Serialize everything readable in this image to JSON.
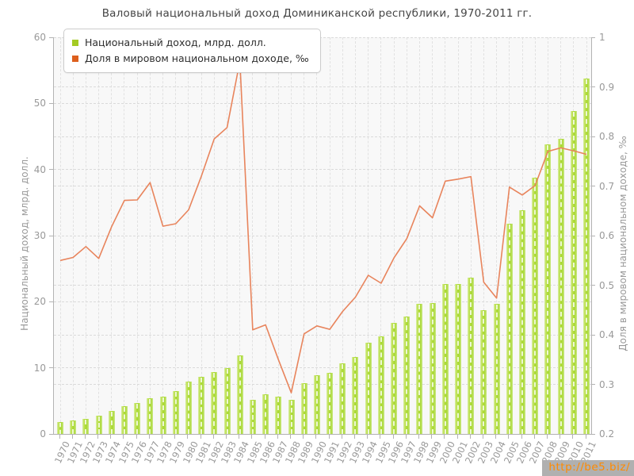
{
  "title": "Валовый национальный доход Доминиканской республики, 1970-2011 гг.",
  "watermark": "http://be5.biz/",
  "legend": {
    "swatch_colors": [
      "#a4cb24",
      "#dd5f1d"
    ]
  },
  "colors": {
    "bar_fill": "#aed637",
    "bar_highlight": "#d8eda4",
    "line_stroke": "#e8845c",
    "plot_background": "#f8f8f8",
    "axis_line": "#b3b3b3",
    "tick_label": "#999999",
    "title_text": "#454545",
    "watermark_text": "#ff8a00",
    "watermark_background": "#b0b0b0"
  },
  "chart_data": {
    "type": "combo (bar + line)",
    "title": "Валовый национальный доход Доминиканской республики, 1970-2011 гг.",
    "grid": true,
    "legend_position": "top-left",
    "categories": [
      "1970",
      "1971",
      "1972",
      "1973",
      "1974",
      "1975",
      "1976",
      "1977",
      "1978",
      "1979",
      "1980",
      "1981",
      "1982",
      "1983",
      "1984",
      "1985",
      "1986",
      "1987",
      "1988",
      "1989",
      "1990",
      "1991",
      "1992",
      "1993",
      "1994",
      "1995",
      "1996",
      "1997",
      "1998",
      "1999",
      "2000",
      "2001",
      "2002",
      "2003",
      "2004",
      "2005",
      "2006",
      "2007",
      "2008",
      "2009",
      "2010",
      "2011"
    ],
    "series": [
      {
        "name": "Национальный доход, млрд. долл.",
        "type": "bar",
        "y_axis": "left",
        "color": "#aed637",
        "values": [
          1.8,
          2.0,
          2.3,
          2.8,
          3.5,
          4.2,
          4.7,
          5.4,
          5.7,
          6.5,
          7.9,
          8.6,
          9.4,
          10.0,
          11.9,
          5.2,
          6.0,
          5.6,
          5.2,
          7.7,
          8.9,
          9.3,
          10.7,
          11.7,
          13.8,
          14.8,
          16.8,
          17.8,
          19.7,
          19.8,
          22.7,
          22.7,
          23.7,
          18.7,
          19.7,
          31.8,
          33.8,
          38.8,
          43.8,
          44.6,
          48.8,
          53.8
        ]
      },
      {
        "name": "Доля в мировом национальном доходе, ‰",
        "type": "line",
        "y_axis": "right",
        "color": "#e8845c",
        "values": [
          0.55,
          0.556,
          0.578,
          0.554,
          0.618,
          0.671,
          0.672,
          0.707,
          0.619,
          0.624,
          0.652,
          0.72,
          0.795,
          0.818,
          0.952,
          0.41,
          0.42,
          0.35,
          0.283,
          0.402,
          0.418,
          0.411,
          0.447,
          0.476,
          0.52,
          0.504,
          0.555,
          0.594,
          0.66,
          0.636,
          0.71,
          0.714,
          0.719,
          0.506,
          0.474,
          0.698,
          0.682,
          0.701,
          0.77,
          0.777,
          0.771,
          0.764
        ]
      }
    ],
    "left_axis": {
      "title": "Национальный доход, млрд. долл.",
      "min": 0,
      "max": 1,
      "range": [
        0,
        60
      ],
      "ticks": [
        "0",
        "10",
        "20",
        "30",
        "40",
        "50",
        "60"
      ]
    },
    "right_axis": {
      "title": "Доля в мировом национальном доходе, ‰",
      "range": [
        0.2,
        1
      ],
      "ticks": [
        "0.2",
        "0.3",
        "0.4",
        "0.5",
        "0.6",
        "0.7",
        "0.8",
        "0.9",
        "1"
      ]
    }
  }
}
